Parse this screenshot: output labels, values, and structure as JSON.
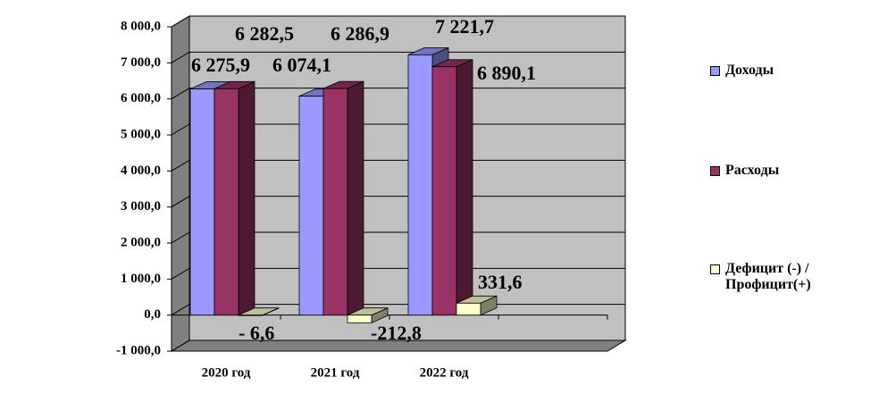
{
  "chart_data": {
    "type": "bar3d",
    "categories": [
      "2020 год",
      "2021 год",
      "2022 год",
      null
    ],
    "series": [
      {
        "name": "Доходы",
        "color": "#9999ff",
        "values": [
          6275.9,
          6074.1,
          7221.7,
          null
        ],
        "value_labels": [
          "6 275,9",
          "6 074,1",
          "7 221,7",
          null
        ]
      },
      {
        "name": "Расходы",
        "color": "#993366",
        "values": [
          6282.5,
          6286.9,
          6890.1,
          null
        ],
        "value_labels": [
          "6 282,5",
          "6 286,9",
          "6 890,1",
          null
        ]
      },
      {
        "name": "Дефицит (-) / Профицит(+)",
        "color": "#ffffcc",
        "values": [
          -6.6,
          -212.8,
          331.6,
          null
        ],
        "value_labels": [
          "- 6,6",
          "-212,8",
          "331,6",
          null
        ]
      }
    ],
    "ylim": [
      -1000,
      8000
    ],
    "yticks": [
      {
        "value": -1000,
        "label": "-1 000,0"
      },
      {
        "value": 0,
        "label": "0,0"
      },
      {
        "value": 1000,
        "label": "1 000,0"
      },
      {
        "value": 2000,
        "label": "2 000,0"
      },
      {
        "value": 3000,
        "label": "3 000,0"
      },
      {
        "value": 4000,
        "label": "4 000,0"
      },
      {
        "value": 5000,
        "label": "5 000,0"
      },
      {
        "value": 6000,
        "label": "6 000,0"
      },
      {
        "value": 7000,
        "label": "7 000,0"
      },
      {
        "value": 8000,
        "label": "8 000,0"
      }
    ],
    "grid": true,
    "legend": "right"
  }
}
